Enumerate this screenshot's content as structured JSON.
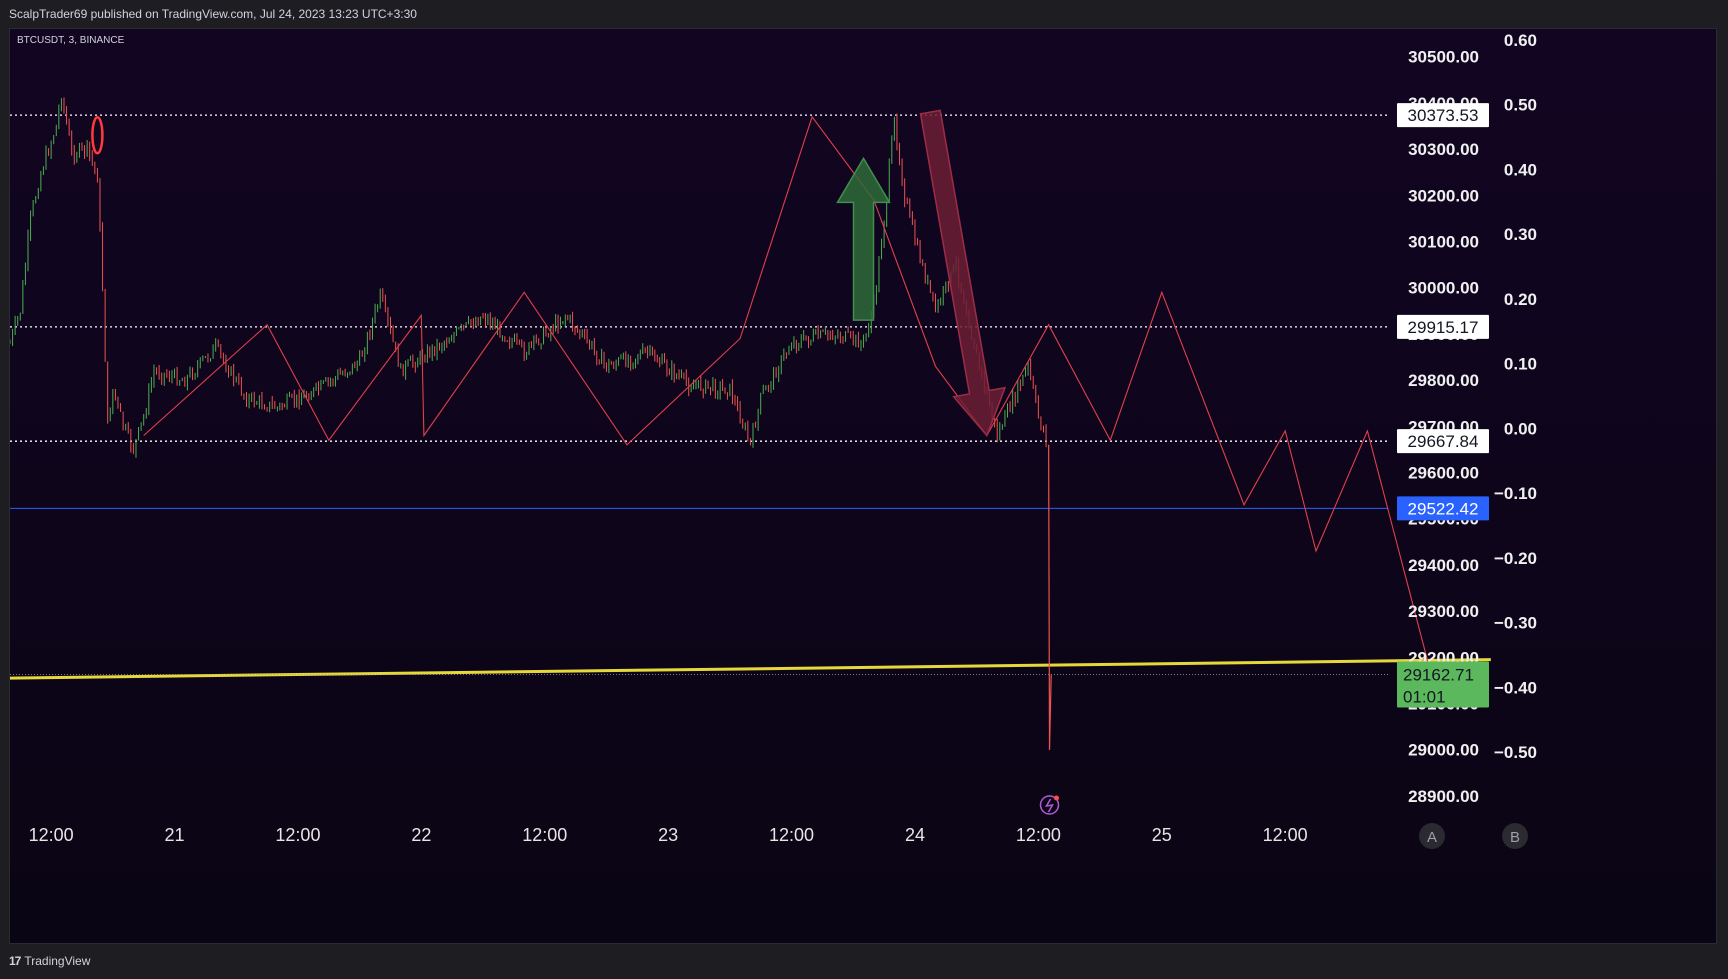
{
  "header": {
    "published": "ScalpTrader69 published on TradingView.com, Jul 24, 2023 13:23 UTC+3:30"
  },
  "footer": {
    "brand": "TradingView"
  },
  "symbol_label": "BTCUSDT, 3, BINANCE",
  "scale_buttons": [
    "A",
    "B"
  ],
  "colors": {
    "background": "#0a0514",
    "up_candle": "#4caf50",
    "down_candle": "#ef5350",
    "zigzag": "#e0404a",
    "trendline": "#e6d83a",
    "blue_line": "#2962ff",
    "green_arrow": "#2e6b3a",
    "red_arrow": "#6b1f35"
  },
  "chart_data": {
    "type": "line",
    "symbol": "BTCUSDT",
    "timeframe": "3",
    "exchange": "BINANCE",
    "x_range": [
      "2023-07-20 08:00",
      "2023-07-25 22:00"
    ],
    "x_ticks": [
      {
        "t": "2023-07-20 12:00",
        "label": "12:00"
      },
      {
        "t": "2023-07-21 00:00",
        "label": "21"
      },
      {
        "t": "2023-07-21 12:00",
        "label": "12:00"
      },
      {
        "t": "2023-07-22 00:00",
        "label": "22"
      },
      {
        "t": "2023-07-22 12:00",
        "label": "12:00"
      },
      {
        "t": "2023-07-23 00:00",
        "label": "23"
      },
      {
        "t": "2023-07-23 12:00",
        "label": "12:00"
      },
      {
        "t": "2023-07-24 00:00",
        "label": "24"
      },
      {
        "t": "2023-07-24 12:00",
        "label": "12:00"
      },
      {
        "t": "2023-07-25 00:00",
        "label": "25"
      },
      {
        "t": "2023-07-25 12:00",
        "label": "12:00"
      }
    ],
    "ylim": [
      28850,
      30560
    ],
    "y_ticks": [
      "30500.00",
      "30400.00",
      "30300.00",
      "30200.00",
      "30100.00",
      "30000.00",
      "29900.00",
      "29800.00",
      "29700.00",
      "29600.00",
      "29500.00",
      "29400.00",
      "29300.00",
      "29200.00",
      "29100.00",
      "29000.00",
      "28900.00"
    ],
    "right_axis_ticks": [
      "0.60",
      "0.50",
      "0.40",
      "0.30",
      "0.20",
      "0.10",
      "0.00",
      "−0.10",
      "−0.20",
      "−0.30",
      "−0.40",
      "−0.50"
    ],
    "price_levels": [
      {
        "price": 30373.53,
        "label": "30373.53",
        "style": "dotted"
      },
      {
        "price": 29915.17,
        "label": "29915.17",
        "style": "dotted"
      },
      {
        "price": 29667.84,
        "label": "29667.84",
        "style": "dotted"
      }
    ],
    "blue_level": {
      "price": 29522.42,
      "label": "29522.42"
    },
    "last_price": {
      "price": 29162.71,
      "label": "29162.71",
      "countdown": "01:01"
    },
    "price_path": [
      [
        "2023-07-20 08:00",
        29880
      ],
      [
        "2023-07-20 09:00",
        29950
      ],
      [
        "2023-07-20 10:00",
        30150
      ],
      [
        "2023-07-20 11:00",
        30250
      ],
      [
        "2023-07-20 12:30",
        30350
      ],
      [
        "2023-07-20 13:00",
        30420
      ],
      [
        "2023-07-20 14:00",
        30290
      ],
      [
        "2023-07-20 15:30",
        30300
      ],
      [
        "2023-07-20 16:30",
        30240
      ],
      [
        "2023-07-20 17:00",
        30000
      ],
      [
        "2023-07-20 17:30",
        29700
      ],
      [
        "2023-07-20 18:00",
        29780
      ],
      [
        "2023-07-20 19:00",
        29700
      ],
      [
        "2023-07-20 20:00",
        29650
      ],
      [
        "2023-07-20 21:00",
        29720
      ],
      [
        "2023-07-20 22:00",
        29820
      ],
      [
        "2023-07-21 01:00",
        29800
      ],
      [
        "2023-07-21 04:00",
        29870
      ],
      [
        "2023-07-21 07:00",
        29760
      ],
      [
        "2023-07-21 10:00",
        29740
      ],
      [
        "2023-07-21 14:00",
        29780
      ],
      [
        "2023-07-21 18:00",
        29840
      ],
      [
        "2023-07-21 20:00",
        29980
      ],
      [
        "2023-07-21 22:00",
        29820
      ],
      [
        "2023-07-22 02:00",
        29880
      ],
      [
        "2023-07-22 06:00",
        29940
      ],
      [
        "2023-07-22 10:00",
        29860
      ],
      [
        "2023-07-22 14:00",
        29940
      ],
      [
        "2023-07-22 18:00",
        29830
      ],
      [
        "2023-07-22 22:00",
        29860
      ],
      [
        "2023-07-23 02:00",
        29790
      ],
      [
        "2023-07-23 06:00",
        29780
      ],
      [
        "2023-07-23 08:00",
        29660
      ],
      [
        "2023-07-23 09:00",
        29760
      ],
      [
        "2023-07-23 12:00",
        29880
      ],
      [
        "2023-07-23 16:00",
        29900
      ],
      [
        "2023-07-23 19:00",
        29880
      ],
      [
        "2023-07-23 20:00",
        29960
      ],
      [
        "2023-07-23 21:00",
        30150
      ],
      [
        "2023-07-23 22:00",
        30360
      ],
      [
        "2023-07-23 23:00",
        30200
      ],
      [
        "2023-07-24 00:00",
        30100
      ],
      [
        "2023-07-24 02:00",
        29950
      ],
      [
        "2023-07-24 04:00",
        30050
      ],
      [
        "2023-07-24 06:00",
        29850
      ],
      [
        "2023-07-24 08:00",
        29680
      ],
      [
        "2023-07-24 10:00",
        29780
      ],
      [
        "2023-07-24 11:00",
        29830
      ],
      [
        "2023-07-24 12:00",
        29720
      ],
      [
        "2023-07-24 13:00",
        29660
      ],
      [
        "2023-07-24 13:05",
        29000
      ],
      [
        "2023-07-24 13:15",
        29162.71
      ]
    ],
    "zigzag_path": [
      [
        "2023-07-20 21:00",
        29680
      ],
      [
        "2023-07-21 09:00",
        29920
      ],
      [
        "2023-07-21 15:00",
        29670
      ],
      [
        "2023-07-22 00:00",
        29940
      ],
      [
        "2023-07-22 00:15",
        29680
      ],
      [
        "2023-07-22 10:00",
        29990
      ],
      [
        "2023-07-22 20:00",
        29660
      ],
      [
        "2023-07-23 07:00",
        29890
      ],
      [
        "2023-07-23 14:00",
        30370
      ],
      [
        "2023-07-23 20:00",
        30190
      ],
      [
        "2023-07-24 02:00",
        29830
      ],
      [
        "2023-07-24 07:00",
        29680
      ],
      [
        "2023-07-24 13:00",
        29920
      ],
      [
        "2023-07-24 19:00",
        29670
      ],
      [
        "2023-07-25 00:00",
        29990
      ],
      [
        "2023-07-25 08:00",
        29530
      ],
      [
        "2023-07-25 12:00",
        29690
      ],
      [
        "2023-07-25 15:00",
        29430
      ],
      [
        "2023-07-25 20:00",
        29690
      ],
      [
        "2023-07-26 02:00",
        29180
      ]
    ],
    "trendline": [
      [
        "2023-07-20 08:00",
        29155
      ],
      [
        "2023-07-26 08:00",
        29195
      ]
    ],
    "green_arrow": {
      "tail": [
        "2023-07-23 19:00",
        29930
      ],
      "head": [
        "2023-07-23 19:00",
        30280
      ]
    },
    "red_arrow": {
      "tail": [
        "2023-07-24 01:30",
        30380
      ],
      "head": [
        "2023-07-24 07:00",
        29680
      ]
    },
    "red_ellipse": {
      "center": [
        "2023-07-20 16:30",
        30330
      ]
    },
    "grid": false
  }
}
